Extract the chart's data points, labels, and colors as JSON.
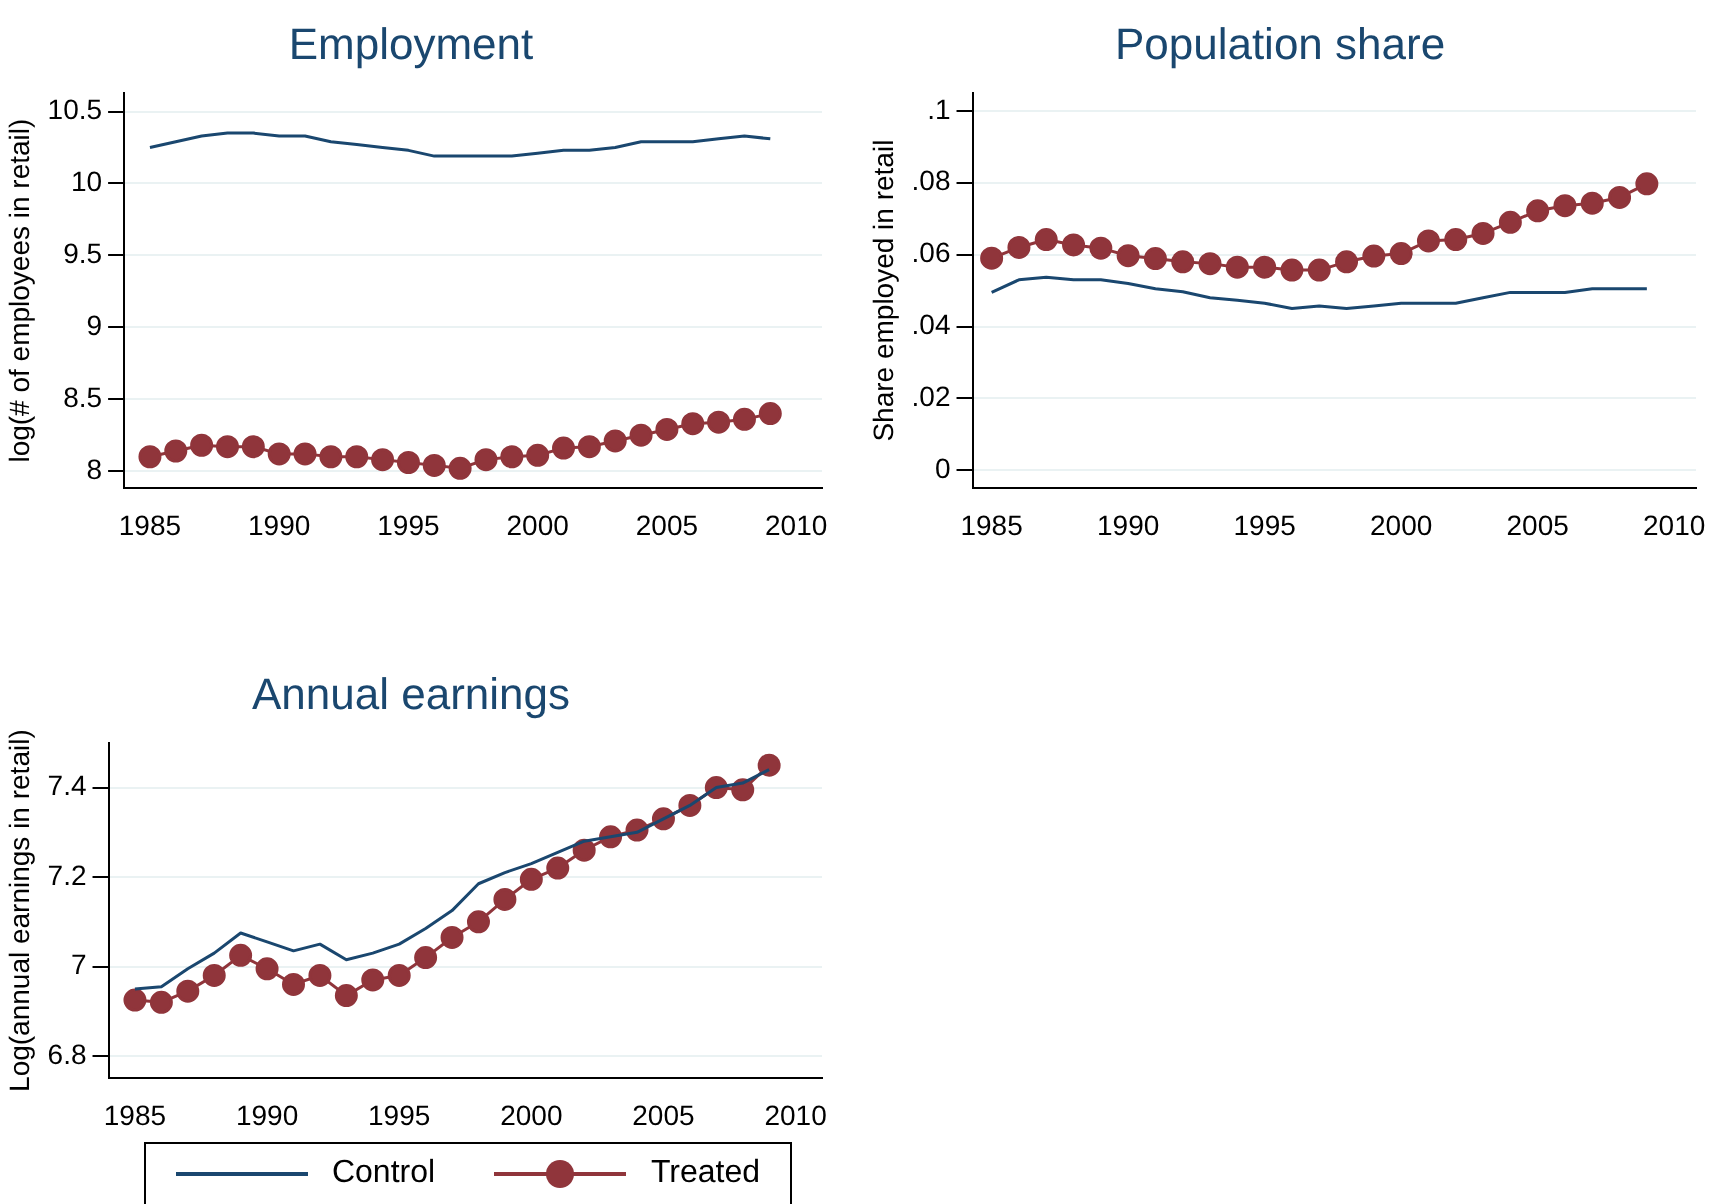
{
  "chart_data": [
    {
      "type": "line",
      "title": "Employment",
      "ylabel": "log(# of employees in retail)",
      "xlim": [
        1984,
        2011
      ],
      "xticks": [
        1985,
        1990,
        1995,
        2000,
        2005,
        2010
      ],
      "ylim": [
        7.88,
        10.63
      ],
      "yticks": [
        8,
        8.5,
        9,
        9.5,
        10,
        10.5
      ],
      "grid": "y",
      "x": [
        1985,
        1986,
        1987,
        1988,
        1989,
        1990,
        1991,
        1992,
        1993,
        1994,
        1995,
        1996,
        1997,
        1998,
        1999,
        2000,
        2001,
        2002,
        2003,
        2004,
        2005,
        2006,
        2007,
        2008,
        2009
      ],
      "series": [
        {
          "color": "#1a476f",
          "marker": "none",
          "values": [
            10.25,
            10.29,
            10.33,
            10.35,
            10.35,
            10.33,
            10.33,
            10.29,
            10.27,
            10.25,
            10.23,
            10.19,
            10.19,
            10.19,
            10.19,
            10.21,
            10.23,
            10.23,
            10.25,
            10.29,
            10.29,
            10.29,
            10.31,
            10.33,
            10.31
          ]
        },
        {
          "color": "#90353b",
          "marker": "circle",
          "values": [
            8.1,
            8.14,
            8.18,
            8.17,
            8.17,
            8.12,
            8.12,
            8.1,
            8.1,
            8.08,
            8.06,
            8.04,
            8.02,
            8.08,
            8.1,
            8.11,
            8.16,
            8.17,
            8.21,
            8.25,
            8.29,
            8.33,
            8.34,
            8.36,
            8.4
          ]
        }
      ]
    },
    {
      "type": "line",
      "title": "Population share",
      "ylabel": "Share employed in retail",
      "xlim": [
        1984.3,
        2010.8
      ],
      "xticks": [
        1985,
        1990,
        1995,
        2000,
        2005,
        2010
      ],
      "ylim": [
        -0.005,
        0.105
      ],
      "yticks": [
        0,
        {
          "value": 0.02,
          "label": ".02"
        },
        {
          "value": 0.04,
          "label": ".04"
        },
        {
          "value": 0.06,
          "label": ".06"
        },
        {
          "value": 0.08,
          "label": ".08"
        },
        {
          "value": 0.1,
          "label": ".1"
        }
      ],
      "grid": "y",
      "x": [
        1985,
        1986,
        1987,
        1988,
        1989,
        1990,
        1991,
        1992,
        1993,
        1994,
        1995,
        1996,
        1997,
        1998,
        1999,
        2000,
        2001,
        2002,
        2003,
        2004,
        2005,
        2006,
        2007,
        2008,
        2009
      ],
      "series": [
        {
          "color": "#1a476f",
          "marker": "none",
          "values": [
            0.0495,
            0.053,
            0.0537,
            0.053,
            0.053,
            0.052,
            0.0505,
            0.0497,
            0.048,
            0.0473,
            0.0465,
            0.045,
            0.0457,
            0.045,
            0.0457,
            0.0465,
            0.0465,
            0.0465,
            0.048,
            0.0495,
            0.0495,
            0.0495,
            0.0505,
            0.0505,
            0.0505
          ]
        },
        {
          "color": "#90353b",
          "marker": "circle",
          "values": [
            0.059,
            0.062,
            0.0642,
            0.0627,
            0.0618,
            0.0597,
            0.0589,
            0.058,
            0.0575,
            0.0565,
            0.0565,
            0.0557,
            0.0557,
            0.058,
            0.0596,
            0.0603,
            0.0638,
            0.0642,
            0.0659,
            0.069,
            0.0722,
            0.0736,
            0.0743,
            0.0759,
            0.0797
          ]
        }
      ]
    },
    {
      "type": "line",
      "title": "Annual earnings",
      "ylabel": "Log(annual earnings in retail)",
      "xlim": [
        1984,
        2011
      ],
      "xticks": [
        1985,
        1990,
        1995,
        2000,
        2005,
        2010
      ],
      "ylim": [
        6.75,
        7.5
      ],
      "yticks": [
        6.8,
        7,
        7.2,
        7.4
      ],
      "grid": "y",
      "legend": "bottom",
      "x": [
        1985,
        1986,
        1987,
        1988,
        1989,
        1990,
        1991,
        1992,
        1993,
        1994,
        1995,
        1996,
        1997,
        1998,
        1999,
        2000,
        2001,
        2002,
        2003,
        2004,
        2005,
        2006,
        2007,
        2008,
        2009
      ],
      "series": [
        {
          "name": "Control",
          "color": "#1a476f",
          "marker": "none",
          "values": [
            6.95,
            6.955,
            6.995,
            7.03,
            7.075,
            7.055,
            7.035,
            7.05,
            7.015,
            7.03,
            7.05,
            7.085,
            7.125,
            7.185,
            7.21,
            7.23,
            7.255,
            7.28,
            7.29,
            7.3,
            7.33,
            7.36,
            7.4,
            7.41,
            7.44
          ]
        },
        {
          "name": "Treated",
          "color": "#90353b",
          "marker": "circle",
          "values": [
            6.925,
            6.92,
            6.945,
            6.98,
            7.025,
            6.995,
            6.96,
            6.98,
            6.935,
            6.97,
            6.98,
            7.02,
            7.065,
            7.1,
            7.15,
            7.195,
            7.22,
            7.26,
            7.29,
            7.305,
            7.33,
            7.36,
            7.4,
            7.395,
            7.45
          ]
        }
      ]
    }
  ]
}
